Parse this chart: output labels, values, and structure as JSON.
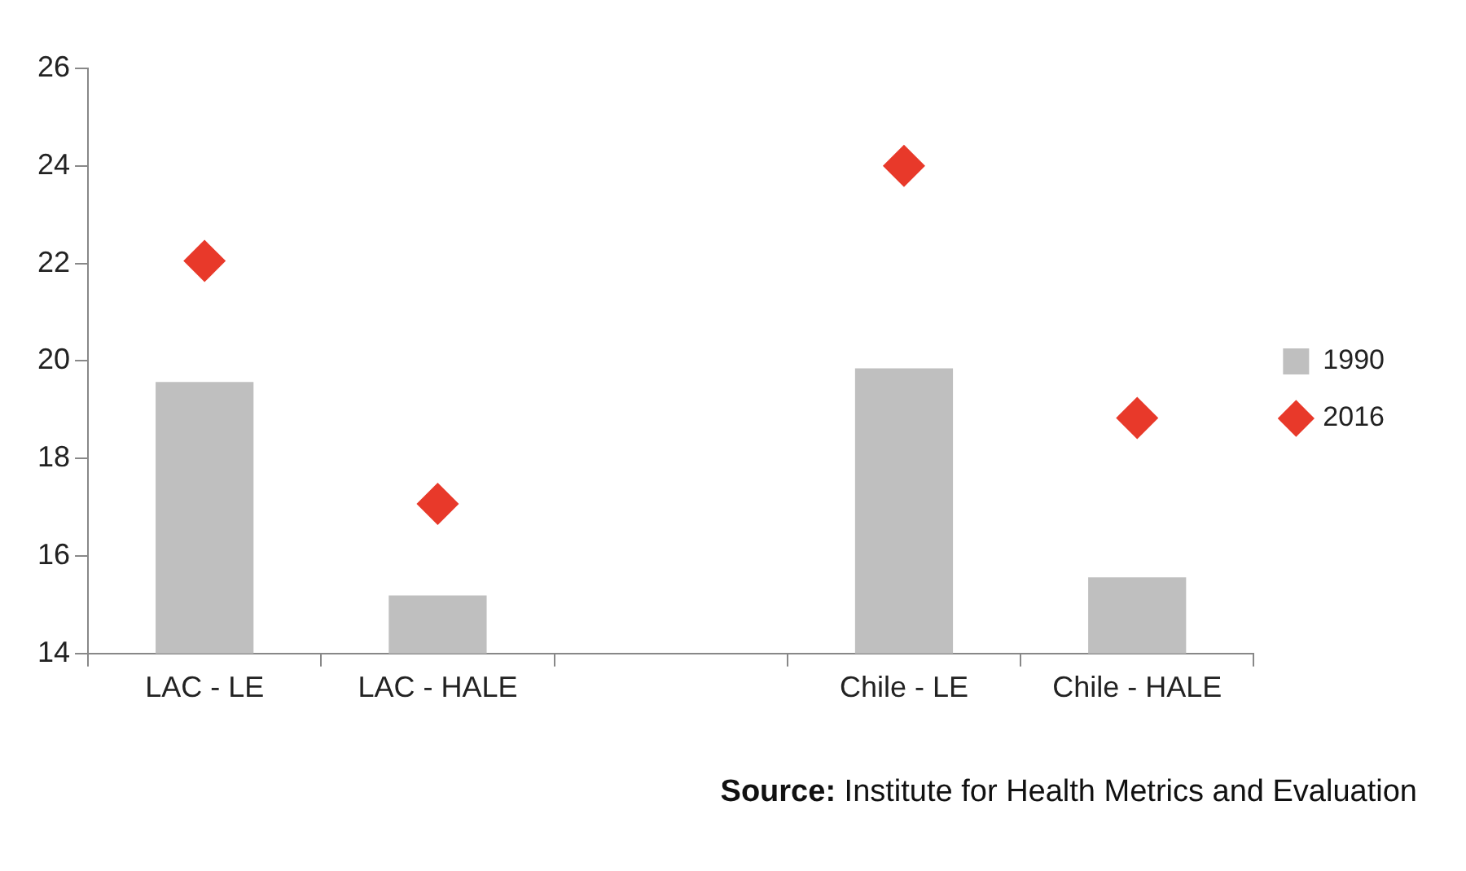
{
  "chart_data": {
    "type": "bar",
    "categories": [
      "LAC - LE",
      "LAC - HALE",
      null,
      "Chile - LE",
      "Chile - HALE"
    ],
    "series": [
      {
        "name": "1990",
        "color": "#bfbfbf",
        "values": [
          19.57,
          15.19,
          null,
          19.85,
          15.56
        ]
      },
      {
        "name": "2016",
        "type": "scatter",
        "color": "#e8392a",
        "marker": "diamond",
        "values": [
          22.05,
          17.07,
          null,
          24.0,
          18.83
        ]
      }
    ],
    "ylim": [
      14,
      26
    ],
    "yticks": [
      14,
      16,
      18,
      20,
      22,
      24,
      26
    ],
    "grid": false,
    "legend": "right",
    "annotations": [
      "Source: Institute for Health Metrics and Evaluation"
    ]
  }
}
